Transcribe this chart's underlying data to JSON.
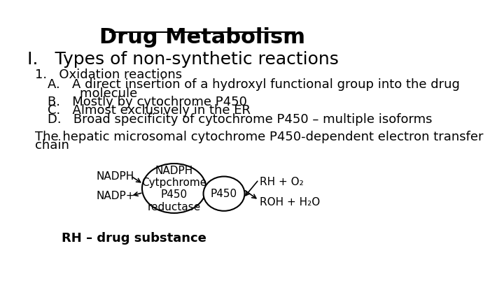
{
  "title": "Drug Metabolism",
  "bg_color": "#ffffff",
  "text_color": "#000000",
  "section_I": "I.   Types of non-synthetic reactions",
  "section_1": "1.   Oxidation reactions",
  "item_A1": "A.   A direct insertion of a hydroxyl functional group into the drug",
  "item_A2": "        molecule",
  "item_B": "B.   Mostly by cytochrome P450",
  "item_C": "C.   Almost exclusively in the ER",
  "item_D": "D.   Broad specificity of cytochrome P450 – multiple isoforms",
  "paragraph1": "The hepatic microsomal cytochrome P450-dependent electron transfer",
  "paragraph2": "chain",
  "nadph_label": "NADPH",
  "nadp_label": "NADP+",
  "ellipse1_text": "NADPH\nCytpchrome\nP450\nreductase",
  "ellipse2_text": "P450",
  "rh_o2": "RH + O₂",
  "roh_h2o": "ROH + H₂O",
  "rh_drug": "RH – drug substance",
  "title_fontsize": 22,
  "section_I_fontsize": 18,
  "body_fontsize": 13,
  "diagram_fontsize": 11
}
